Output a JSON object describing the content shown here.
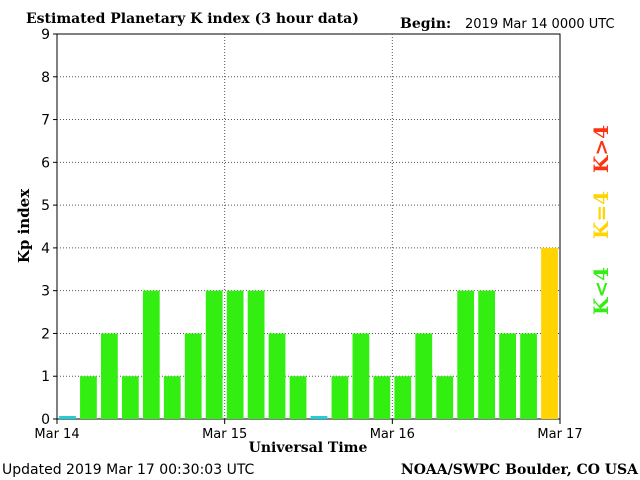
{
  "header": {
    "title": "Estimated Planetary K index (3 hour data)",
    "begin_label": "Begin:",
    "begin_value": "2019 Mar 14 0000 UTC"
  },
  "footer": {
    "updated": "Updated 2019 Mar 17 00:30:03 UTC",
    "source": "NOAA/SWPC Boulder, CO USA"
  },
  "legend": {
    "high": "K>4",
    "equal": "K=4",
    "low": "K<4"
  },
  "colors": {
    "low": "#33ee11",
    "equal": "#ffd400",
    "high": "#ff3311",
    "zero": "#1ecfd6"
  },
  "chart_data": {
    "type": "bar",
    "title": "Estimated Planetary K index (3 hour data)",
    "xlabel": "Universal Time",
    "ylabel": "Kp index",
    "ylim": [
      0,
      9
    ],
    "yticks": [
      "0",
      "1",
      "2",
      "3",
      "4",
      "5",
      "6",
      "7",
      "8",
      "9"
    ],
    "xticks": [
      "Mar 14",
      "Mar 15",
      "Mar 16",
      "Mar 17"
    ],
    "grid": true,
    "values": [
      0,
      1,
      2,
      1,
      3,
      1,
      2,
      3,
      3,
      3,
      2,
      1,
      0,
      1,
      2,
      1,
      1,
      2,
      1,
      3,
      3,
      2,
      2,
      4
    ]
  }
}
